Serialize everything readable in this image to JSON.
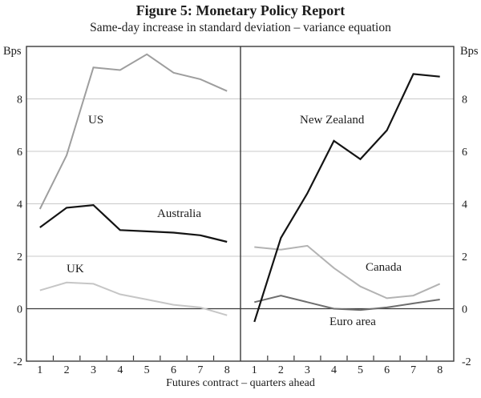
{
  "figure": {
    "title": "Figure 5: Monetary Policy Report",
    "subtitle": "Same-day increase in standard deviation – variance equation"
  },
  "chart_data": {
    "type": "line",
    "title": "Figure 5: Monetary Policy Report",
    "subtitle": "Same-day increase in standard deviation – variance equation",
    "unit": "Bps",
    "xlabel": "Futures contract – quarters ahead",
    "x": [
      1,
      2,
      3,
      4,
      5,
      6,
      7,
      8
    ],
    "ylim": [
      -2,
      10
    ],
    "y_ticks": [
      8,
      6,
      4,
      2,
      0,
      -2
    ],
    "grid_values": [
      8,
      6,
      4,
      2
    ],
    "zero_line": 0,
    "legend_position": "inline-labels",
    "grid": true,
    "axis_color": "#3a3a3a",
    "grid_color": "#c9c9c9",
    "panels": [
      {
        "name": "left",
        "series": [
          {
            "name": "US",
            "color": "#9e9e9e",
            "values": [
              3.8,
              5.85,
              9.2,
              9.1,
              9.7,
              9.0,
              8.75,
              8.3
            ]
          },
          {
            "name": "Australia",
            "color": "#141414",
            "values": [
              3.1,
              3.85,
              3.95,
              3.0,
              2.95,
              2.9,
              2.8,
              2.55
            ]
          },
          {
            "name": "UK",
            "color": "#c6c6c6",
            "values": [
              0.7,
              1.0,
              0.95,
              0.55,
              0.35,
              0.15,
              0.05,
              -0.25
            ]
          }
        ]
      },
      {
        "name": "right",
        "series": [
          {
            "name": "New Zealand",
            "color": "#141414",
            "values": [
              -0.5,
              2.7,
              4.4,
              6.4,
              5.7,
              6.8,
              8.95,
              8.85
            ]
          },
          {
            "name": "Canada",
            "color": "#b3b3b3",
            "values": [
              2.35,
              2.25,
              2.4,
              1.55,
              0.85,
              0.4,
              0.5,
              0.95
            ]
          },
          {
            "name": "Euro area",
            "color": "#6e6e6e",
            "values": [
              0.25,
              0.5,
              0.25,
              0.0,
              -0.05,
              0.05,
              0.2,
              0.35
            ]
          }
        ]
      }
    ]
  }
}
